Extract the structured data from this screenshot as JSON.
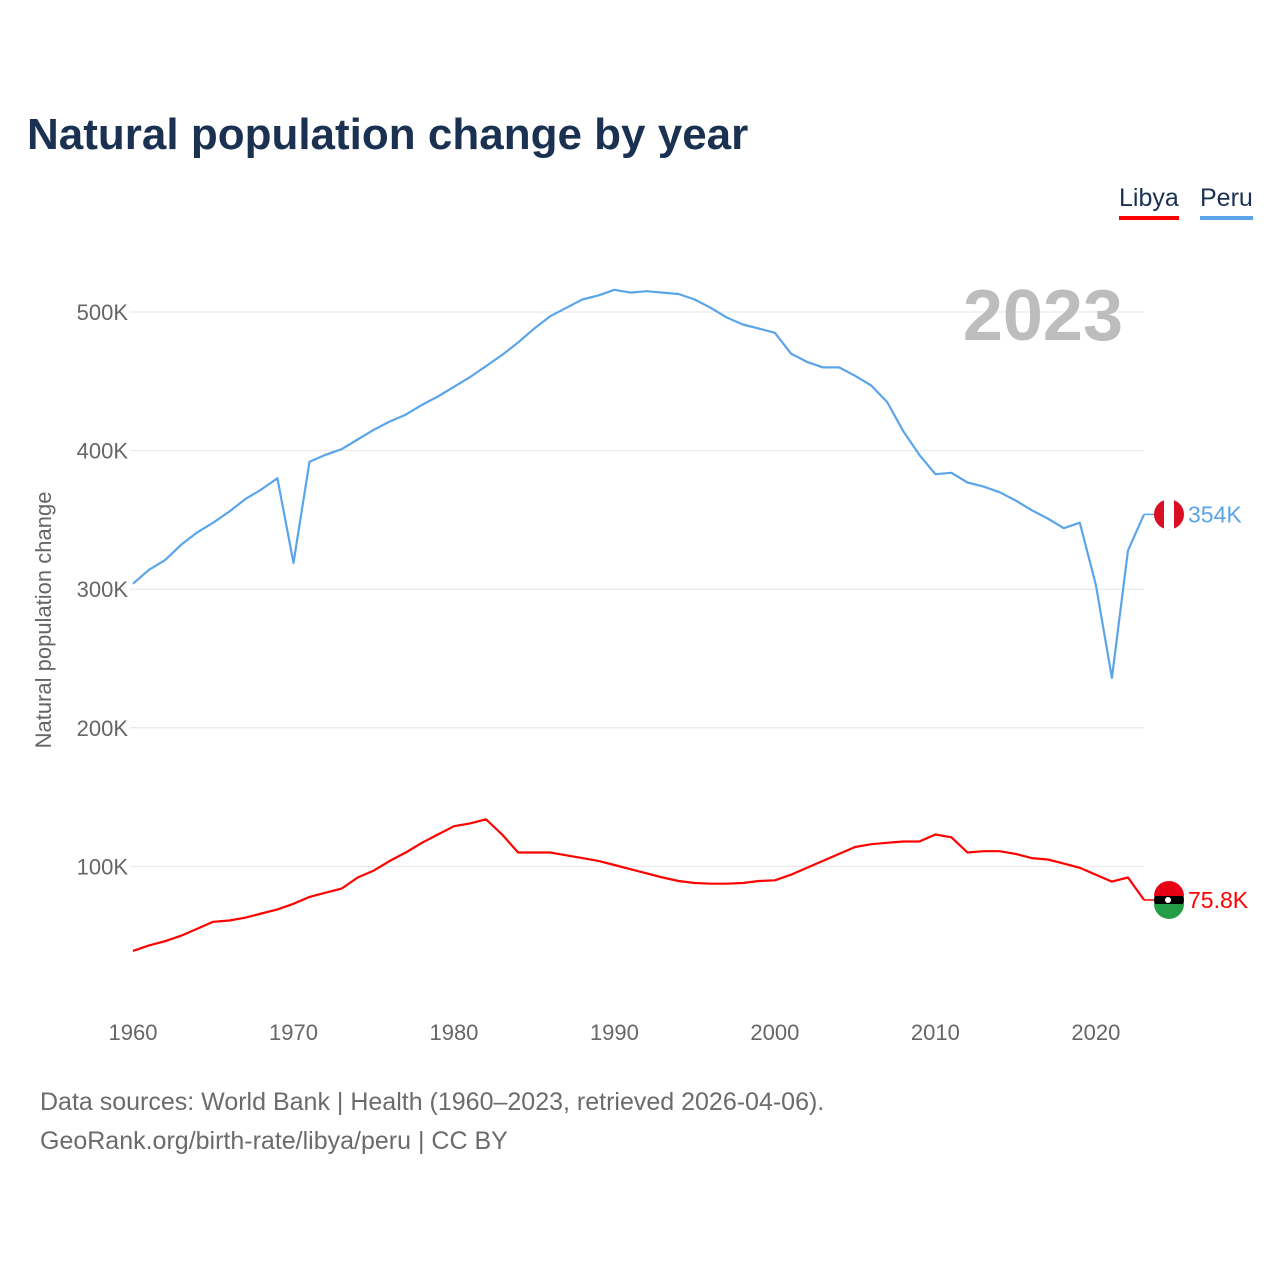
{
  "chart_data": {
    "type": "line",
    "title": "Natural population change by year",
    "xlabel": "",
    "ylabel": "Natural population change",
    "year_watermark": "2023",
    "xlim": [
      1960,
      2023
    ],
    "ylim": [
      0,
      560000
    ],
    "x_ticks": [
      "1960",
      "1970",
      "1980",
      "1990",
      "2000",
      "2010",
      "2020"
    ],
    "y_ticks": [
      {
        "v": 100000,
        "label": "100K"
      },
      {
        "v": 200000,
        "label": "200K"
      },
      {
        "v": 300000,
        "label": "300K"
      },
      {
        "v": 400000,
        "label": "400K"
      },
      {
        "v": 500000,
        "label": "500K"
      }
    ],
    "grid": true,
    "legend_position": "top-right",
    "x": [
      1960,
      1961,
      1962,
      1963,
      1964,
      1965,
      1966,
      1967,
      1968,
      1969,
      1970,
      1971,
      1972,
      1973,
      1974,
      1975,
      1976,
      1977,
      1978,
      1979,
      1980,
      1981,
      1982,
      1983,
      1984,
      1985,
      1986,
      1987,
      1988,
      1989,
      1990,
      1991,
      1992,
      1993,
      1994,
      1995,
      1996,
      1997,
      1998,
      1999,
      2000,
      2001,
      2002,
      2003,
      2004,
      2005,
      2006,
      2007,
      2008,
      2009,
      2010,
      2011,
      2012,
      2013,
      2014,
      2015,
      2016,
      2017,
      2018,
      2019,
      2020,
      2021,
      2022,
      2023
    ],
    "series": [
      {
        "name": "Libya",
        "color": "#ff0000",
        "end_label": "75.8K",
        "values": [
          39,
          43,
          46,
          50,
          55,
          60,
          61,
          63,
          66,
          69,
          73,
          78,
          81,
          84,
          92,
          97,
          104,
          110,
          117,
          123,
          129,
          131,
          134,
          123,
          110,
          110,
          110,
          108,
          106,
          104,
          101,
          98,
          95,
          92,
          89.5,
          88,
          87.5,
          87.5,
          88,
          89.5,
          90,
          94,
          99,
          104,
          109,
          114,
          116,
          117,
          118,
          118,
          123,
          121,
          110,
          111,
          111,
          109,
          106,
          105,
          102,
          99,
          94,
          89,
          92,
          75.8
        ]
      },
      {
        "name": "Peru",
        "color": "#5aa5ea",
        "end_label": "354K",
        "values": [
          304,
          314,
          321,
          332,
          341,
          348,
          356,
          365,
          372,
          380,
          319,
          392,
          397,
          401,
          408,
          415,
          421,
          426,
          433,
          439,
          446,
          453,
          461,
          469,
          478,
          488,
          497,
          503,
          509,
          512,
          516,
          514,
          515,
          514,
          513,
          509,
          503,
          496,
          491,
          488,
          485,
          470,
          464,
          460,
          460,
          454,
          447,
          435,
          414,
          397,
          383,
          384,
          377,
          374,
          370,
          364,
          357,
          351,
          344,
          348,
          303,
          236,
          328,
          354
        ]
      }
    ]
  },
  "footer": {
    "line1": "Data sources: World Bank | Health (1960–2023, retrieved 2026-04-06).",
    "line2": "GeoRank.org/birth-rate/libya/peru | CC BY"
  }
}
